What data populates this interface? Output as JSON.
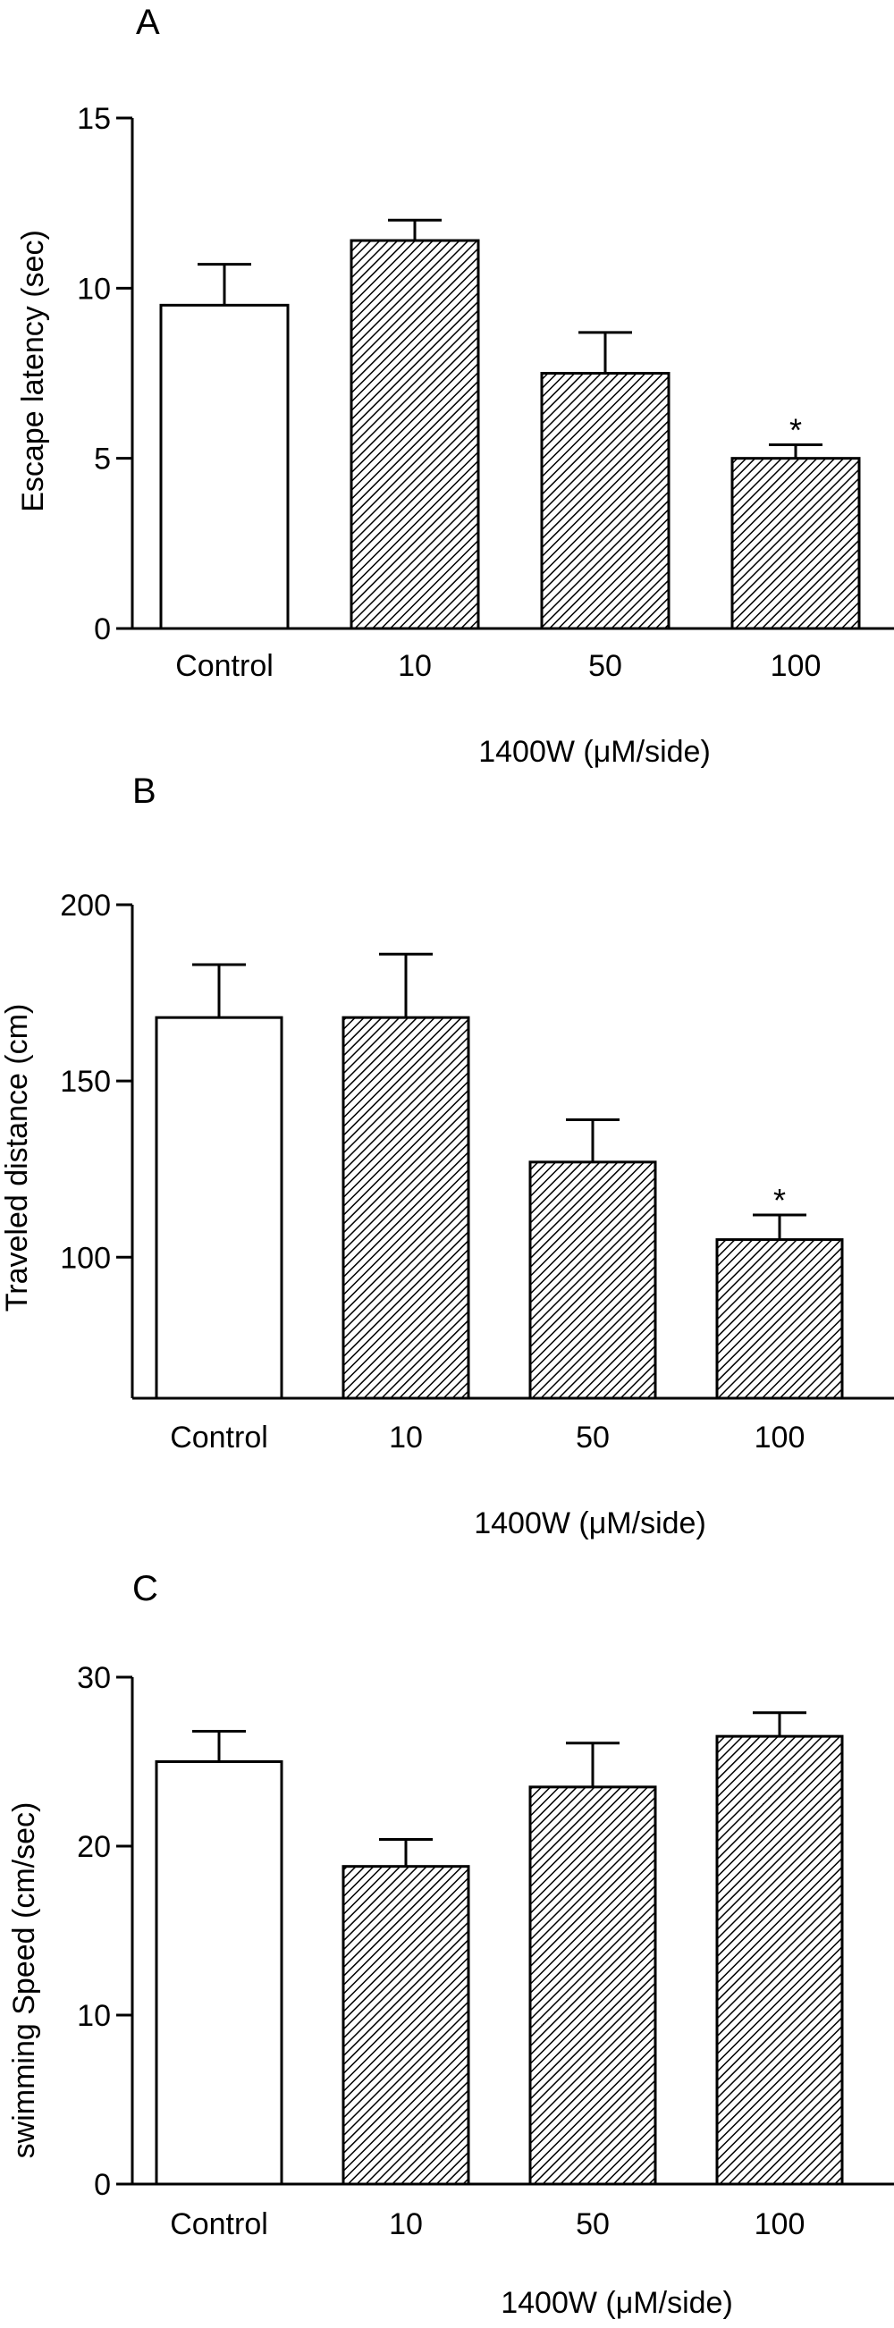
{
  "chart_data": [
    {
      "type": "bar",
      "panel_label": "A",
      "categories": [
        "Control",
        "10",
        "50",
        "100"
      ],
      "values": [
        9.5,
        11.4,
        7.5,
        5.0
      ],
      "errors": [
        1.2,
        0.6,
        1.2,
        0.4
      ],
      "significance": [
        "",
        "",
        "",
        "*"
      ],
      "fills": [
        "open",
        "hatched",
        "hatched",
        "hatched"
      ],
      "ylabel": "Escape latency (sec)",
      "xlabel": "1400W (μM/side)",
      "yticks": [
        "0",
        "5",
        "10",
        "15"
      ],
      "ylim": [
        0,
        15
      ],
      "grid": false
    },
    {
      "type": "bar",
      "panel_label": "B",
      "categories": [
        "Control",
        "10",
        "50",
        "100"
      ],
      "values": [
        168,
        168,
        127,
        105
      ],
      "errors": [
        15,
        18,
        12,
        7
      ],
      "significance": [
        "",
        "",
        "",
        "*"
      ],
      "fills": [
        "open",
        "hatched",
        "hatched",
        "hatched"
      ],
      "ylabel": "Traveled distance (cm)",
      "xlabel": "1400W (μM/side)",
      "yticks": [
        "100",
        "150",
        "200"
      ],
      "ylim": [
        60,
        200
      ],
      "grid": false
    },
    {
      "type": "bar",
      "panel_label": "C",
      "categories": [
        "Control",
        "10",
        "50",
        "100"
      ],
      "values": [
        25,
        18.8,
        23.5,
        26.5
      ],
      "errors": [
        1.8,
        1.6,
        2.6,
        1.4
      ],
      "significance": [
        "",
        "",
        "",
        ""
      ],
      "fills": [
        "open",
        "hatched",
        "hatched",
        "hatched"
      ],
      "ylabel": "swimming Speed (cm/sec)",
      "xlabel": "1400W (μM/side)",
      "yticks": [
        "0",
        "10",
        "20",
        "30"
      ],
      "ylim": [
        0,
        30
      ],
      "grid": false
    }
  ]
}
